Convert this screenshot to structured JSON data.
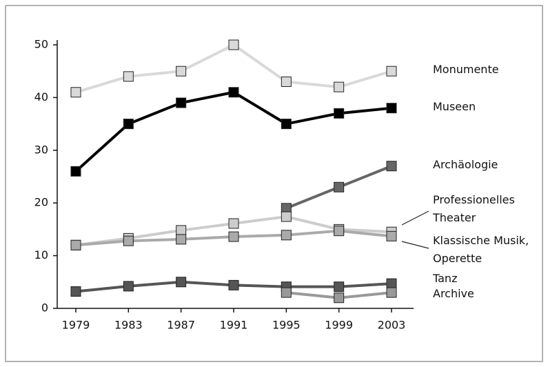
{
  "chart_data": {
    "type": "line",
    "x": [
      1979,
      1983,
      1987,
      1991,
      1995,
      1999,
      2003
    ],
    "xlim": [
      1979,
      2003
    ],
    "xticks": [
      1979,
      1983,
      1987,
      1991,
      1995,
      1999,
      2003
    ],
    "ylim": [
      0,
      50
    ],
    "yticks": [
      0,
      10,
      20,
      30,
      40,
      50
    ],
    "grid": false,
    "series": [
      {
        "name": "Monumente",
        "color": "#d9d9d9",
        "values": [
          41,
          44,
          45,
          50,
          43,
          42,
          45
        ]
      },
      {
        "name": "Museen",
        "color": "#000000",
        "values": [
          26,
          35,
          39,
          41,
          35,
          37,
          38
        ]
      },
      {
        "name": "Archäologie",
        "color": "#666666",
        "values": [
          null,
          null,
          null,
          null,
          19,
          23,
          27
        ]
      },
      {
        "name": "Professionelles Theater",
        "color": "#cccccc",
        "values": [
          12,
          13.3,
          14.8,
          16.1,
          17.4,
          15,
          14.5
        ]
      },
      {
        "name": "Klassische Musik, Operette",
        "color": "#aaaaaa",
        "values": [
          12,
          12.8,
          13.1,
          13.6,
          13.9,
          14.7,
          13.7
        ]
      },
      {
        "name": "Tanz",
        "color": "#555555",
        "values": [
          3.2,
          4.2,
          5,
          4.4,
          4.1,
          4.1,
          4.7
        ]
      },
      {
        "name": "Archive",
        "color": "#999999",
        "values": [
          null,
          null,
          null,
          null,
          3,
          2,
          3
        ]
      }
    ]
  }
}
